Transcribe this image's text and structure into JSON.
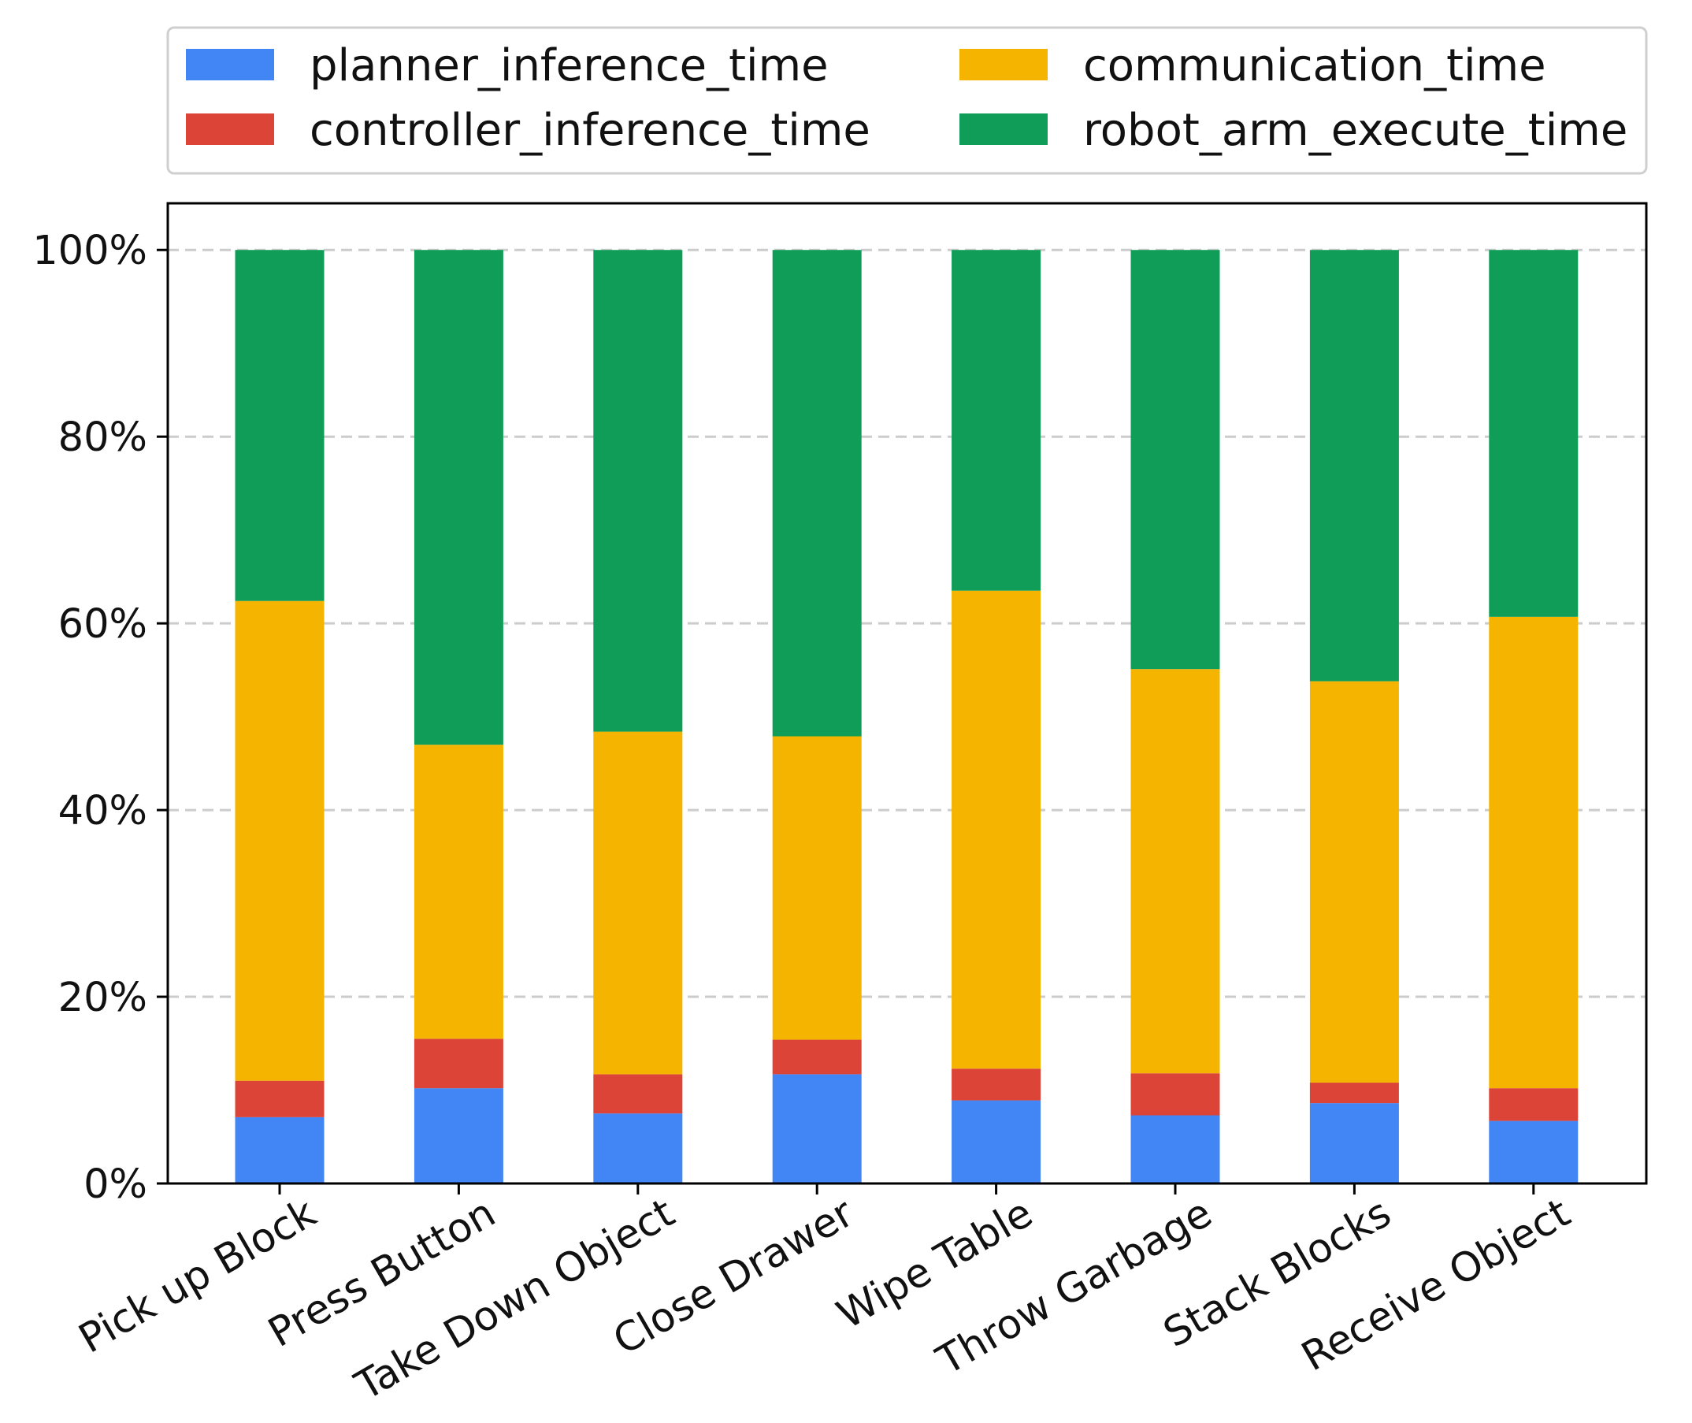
{
  "chart_data": {
    "type": "bar",
    "stacked": true,
    "categories": [
      "Pick up Block",
      "Press Button",
      "Take Down Object",
      "Close Drawer",
      "Wipe Table",
      "Throw Garbage",
      "Stack Blocks",
      "Receive Object"
    ],
    "series": [
      {
        "name": "planner_inference_time",
        "color": "#4285F4",
        "values": [
          7.1,
          10.2,
          7.5,
          11.7,
          8.9,
          7.3,
          8.6,
          6.7
        ]
      },
      {
        "name": "controller_inference_time",
        "color": "#DB4437",
        "values": [
          3.9,
          5.3,
          4.2,
          3.7,
          3.4,
          4.5,
          2.2,
          3.5
        ]
      },
      {
        "name": "communication_time",
        "color": "#F4B400",
        "values": [
          51.4,
          31.5,
          36.7,
          32.5,
          51.2,
          43.3,
          43.0,
          50.5
        ]
      },
      {
        "name": "robot_arm_execute_time",
        "color": "#0F9D58",
        "values": [
          37.6,
          53.0,
          51.6,
          52.1,
          36.5,
          44.9,
          46.2,
          39.3
        ]
      }
    ],
    "yticks": [
      "0%",
      "20%",
      "40%",
      "60%",
      "80%",
      "100%"
    ],
    "ylim": [
      0,
      105
    ],
    "grid": "y-dashed",
    "legend_position": "top",
    "xlabel": "",
    "ylabel": "",
    "title": ""
  }
}
